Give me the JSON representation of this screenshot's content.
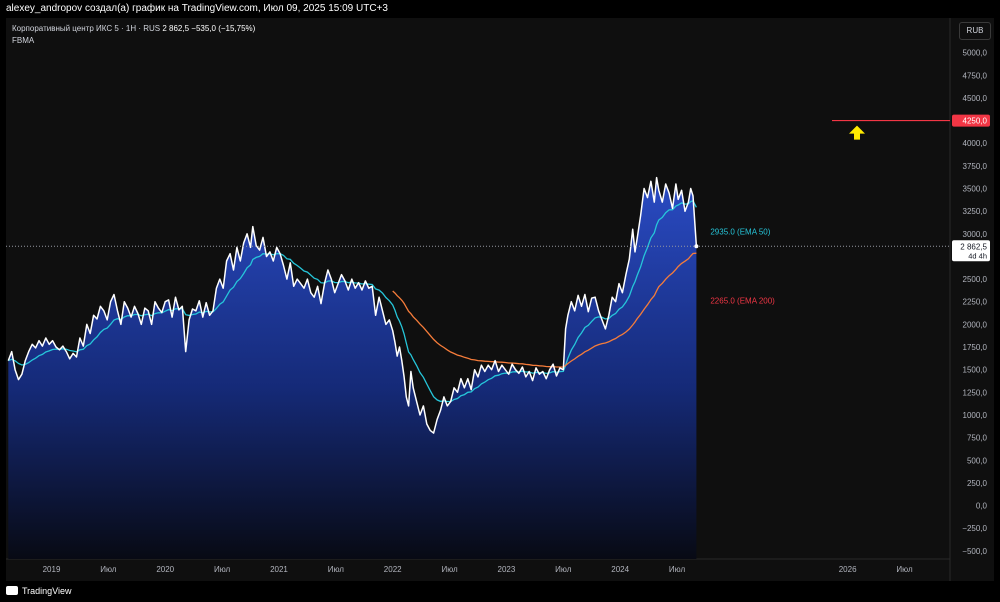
{
  "header": {
    "attribution": "alexey_andropov создал(а) график на TradingView.com, Июл 09, 2025 15:09 UTC+3"
  },
  "legend": {
    "symbol": "Корпоративный центр ИКС 5 · 1Н · RUS",
    "last": "2 862,5",
    "change": "−535,0 (−15,75%)",
    "indicator": "FBMA"
  },
  "currency_button": "RUB",
  "footer": {
    "brand": "TradingView"
  },
  "colors": {
    "background": "#0f0f0f",
    "price_line": "#ffffff",
    "area_top": "#2a4bc4",
    "ema50": "#26c6da",
    "ema200": "#f57c3a",
    "alert_line": "#f23645",
    "arrow": "#ffeb00"
  },
  "chart_data": {
    "type": "area",
    "y_axis_ticks": [
      "5000,0",
      "4750,0",
      "4500,0",
      "4250,0",
      "4000,0",
      "3750,0",
      "3500,0",
      "3250,0",
      "3000,0",
      "2750,0",
      "2500,0",
      "2250,0",
      "2000,0",
      "1750,0",
      "1500,0",
      "1250,0",
      "1000,0",
      "750,0",
      "500,0",
      "250,0",
      "0,0",
      "−250,0",
      "−500,0"
    ],
    "y_tick_values": [
      5000,
      4750,
      4500,
      4250,
      4000,
      3750,
      3500,
      3250,
      3000,
      2750,
      2500,
      2250,
      2000,
      1750,
      1500,
      1250,
      1000,
      750,
      500,
      250,
      0,
      -250,
      -500
    ],
    "ylim": [
      -590,
      5250
    ],
    "x_axis_labels": [
      {
        "label": "2019",
        "t": 2019.0
      },
      {
        "label": "Июл",
        "t": 2019.5
      },
      {
        "label": "2020",
        "t": 2020.0
      },
      {
        "label": "Июл",
        "t": 2020.5
      },
      {
        "label": "2021",
        "t": 2021.0
      },
      {
        "label": "Июл",
        "t": 2021.5
      },
      {
        "label": "2022",
        "t": 2022.0
      },
      {
        "label": "Июл",
        "t": 2022.5
      },
      {
        "label": "2023",
        "t": 2023.0
      },
      {
        "label": "Июл",
        "t": 2023.5
      },
      {
        "label": "2024",
        "t": 2024.0
      },
      {
        "label": "Июл",
        "t": 2024.5
      },
      {
        "label": "2026",
        "t": 2026.0
      },
      {
        "label": "Июл",
        "t": 2026.5
      }
    ],
    "series": [
      {
        "name": "Корпоративный центр ИКС 5",
        "points": [
          [
            2018.62,
            1600
          ],
          [
            2018.65,
            1700
          ],
          [
            2018.68,
            1500
          ],
          [
            2018.71,
            1390
          ],
          [
            2018.74,
            1450
          ],
          [
            2018.77,
            1600
          ],
          [
            2018.8,
            1700
          ],
          [
            2018.83,
            1780
          ],
          [
            2018.86,
            1740
          ],
          [
            2018.89,
            1820
          ],
          [
            2018.92,
            1760
          ],
          [
            2018.95,
            1850
          ],
          [
            2018.98,
            1780
          ],
          [
            2019.01,
            1820
          ],
          [
            2019.04,
            1750
          ],
          [
            2019.07,
            1720
          ],
          [
            2019.1,
            1760
          ],
          [
            2019.13,
            1700
          ],
          [
            2019.16,
            1620
          ],
          [
            2019.19,
            1680
          ],
          [
            2019.22,
            1640
          ],
          [
            2019.25,
            1850
          ],
          [
            2019.28,
            1760
          ],
          [
            2019.31,
            2000
          ],
          [
            2019.34,
            1900
          ],
          [
            2019.37,
            2100
          ],
          [
            2019.4,
            2060
          ],
          [
            2019.43,
            2200
          ],
          [
            2019.46,
            2150
          ],
          [
            2019.49,
            2050
          ],
          [
            2019.52,
            2250
          ],
          [
            2019.55,
            2330
          ],
          [
            2019.58,
            2150
          ],
          [
            2019.61,
            2000
          ],
          [
            2019.64,
            2250
          ],
          [
            2019.67,
            2180
          ],
          [
            2019.7,
            2080
          ],
          [
            2019.73,
            2200
          ],
          [
            2019.76,
            2120
          ],
          [
            2019.79,
            2000
          ],
          [
            2019.82,
            2180
          ],
          [
            2019.85,
            2150
          ],
          [
            2019.88,
            2000
          ],
          [
            2019.91,
            2250
          ],
          [
            2019.94,
            2180
          ],
          [
            2019.97,
            2130
          ],
          [
            2020.0,
            2250
          ],
          [
            2020.03,
            2270
          ],
          [
            2020.06,
            2080
          ],
          [
            2020.09,
            2300
          ],
          [
            2020.12,
            2160
          ],
          [
            2020.15,
            2200
          ],
          [
            2020.18,
            1700
          ],
          [
            2020.21,
            2050
          ],
          [
            2020.24,
            2170
          ],
          [
            2020.27,
            2150
          ],
          [
            2020.3,
            2260
          ],
          [
            2020.33,
            2080
          ],
          [
            2020.36,
            2240
          ],
          [
            2020.39,
            2100
          ],
          [
            2020.42,
            2150
          ],
          [
            2020.45,
            2400
          ],
          [
            2020.48,
            2500
          ],
          [
            2020.51,
            2400
          ],
          [
            2020.54,
            2700
          ],
          [
            2020.57,
            2780
          ],
          [
            2020.6,
            2600
          ],
          [
            2020.63,
            2850
          ],
          [
            2020.66,
            2700
          ],
          [
            2020.69,
            2900
          ],
          [
            2020.72,
            3000
          ],
          [
            2020.75,
            2850
          ],
          [
            2020.77,
            3080
          ],
          [
            2020.8,
            2870
          ],
          [
            2020.83,
            2820
          ],
          [
            2020.86,
            2960
          ],
          [
            2020.89,
            2750
          ],
          [
            2020.92,
            2800
          ],
          [
            2020.95,
            2700
          ],
          [
            2020.98,
            2850
          ],
          [
            2021.01,
            2780
          ],
          [
            2021.04,
            2650
          ],
          [
            2021.07,
            2500
          ],
          [
            2021.1,
            2680
          ],
          [
            2021.13,
            2420
          ],
          [
            2021.16,
            2500
          ],
          [
            2021.19,
            2450
          ],
          [
            2021.22,
            2400
          ],
          [
            2021.25,
            2500
          ],
          [
            2021.28,
            2350
          ],
          [
            2021.31,
            2300
          ],
          [
            2021.34,
            2420
          ],
          [
            2021.37,
            2230
          ],
          [
            2021.4,
            2450
          ],
          [
            2021.43,
            2600
          ],
          [
            2021.46,
            2500
          ],
          [
            2021.49,
            2350
          ],
          [
            2021.52,
            2450
          ],
          [
            2021.55,
            2550
          ],
          [
            2021.58,
            2480
          ],
          [
            2021.61,
            2380
          ],
          [
            2021.64,
            2500
          ],
          [
            2021.67,
            2400
          ],
          [
            2021.7,
            2460
          ],
          [
            2021.73,
            2380
          ],
          [
            2021.76,
            2480
          ],
          [
            2021.79,
            2400
          ],
          [
            2021.82,
            2420
          ],
          [
            2021.85,
            2100
          ],
          [
            2021.88,
            2300
          ],
          [
            2021.91,
            2150
          ],
          [
            2021.94,
            2000
          ],
          [
            2021.97,
            2050
          ],
          [
            2022.0,
            1930
          ],
          [
            2022.02,
            1800
          ],
          [
            2022.04,
            1650
          ],
          [
            2022.06,
            1750
          ],
          [
            2022.08,
            1600
          ],
          [
            2022.1,
            1420
          ],
          [
            2022.12,
            1200
          ],
          [
            2022.14,
            1100
          ],
          [
            2022.16,
            1480
          ],
          [
            2022.18,
            1300
          ],
          [
            2022.21,
            1150
          ],
          [
            2022.24,
            1000
          ],
          [
            2022.27,
            1100
          ],
          [
            2022.3,
            900
          ],
          [
            2022.33,
            830
          ],
          [
            2022.36,
            800
          ],
          [
            2022.39,
            950
          ],
          [
            2022.42,
            1050
          ],
          [
            2022.45,
            1200
          ],
          [
            2022.48,
            1100
          ],
          [
            2022.51,
            1150
          ],
          [
            2022.54,
            1300
          ],
          [
            2022.57,
            1250
          ],
          [
            2022.6,
            1400
          ],
          [
            2022.63,
            1300
          ],
          [
            2022.66,
            1400
          ],
          [
            2022.69,
            1280
          ],
          [
            2022.72,
            1500
          ],
          [
            2022.75,
            1420
          ],
          [
            2022.78,
            1550
          ],
          [
            2022.81,
            1480
          ],
          [
            2022.84,
            1550
          ],
          [
            2022.87,
            1500
          ],
          [
            2022.9,
            1600
          ],
          [
            2022.93,
            1480
          ],
          [
            2022.96,
            1550
          ],
          [
            2022.99,
            1500
          ],
          [
            2023.02,
            1450
          ],
          [
            2023.05,
            1560
          ],
          [
            2023.08,
            1500
          ],
          [
            2023.11,
            1460
          ],
          [
            2023.14,
            1530
          ],
          [
            2023.17,
            1420
          ],
          [
            2023.2,
            1480
          ],
          [
            2023.23,
            1380
          ],
          [
            2023.26,
            1520
          ],
          [
            2023.29,
            1450
          ],
          [
            2023.32,
            1480
          ],
          [
            2023.35,
            1400
          ],
          [
            2023.38,
            1500
          ],
          [
            2023.41,
            1560
          ],
          [
            2023.44,
            1430
          ],
          [
            2023.47,
            1520
          ],
          [
            2023.5,
            1500
          ],
          [
            2023.52,
            1950
          ],
          [
            2023.54,
            2100
          ],
          [
            2023.57,
            2250
          ],
          [
            2023.6,
            2150
          ],
          [
            2023.63,
            2320
          ],
          [
            2023.66,
            2200
          ],
          [
            2023.69,
            2330
          ],
          [
            2023.72,
            2140
          ],
          [
            2023.75,
            2290
          ],
          [
            2023.78,
            2300
          ],
          [
            2023.81,
            2150
          ],
          [
            2023.84,
            2050
          ],
          [
            2023.87,
            1950
          ],
          [
            2023.9,
            2100
          ],
          [
            2023.93,
            2300
          ],
          [
            2023.96,
            2250
          ],
          [
            2023.99,
            2450
          ],
          [
            2024.02,
            2350
          ],
          [
            2024.05,
            2550
          ],
          [
            2024.08,
            2720
          ],
          [
            2024.11,
            3050
          ],
          [
            2024.13,
            2800
          ],
          [
            2024.15,
            2950
          ],
          [
            2024.18,
            3200
          ],
          [
            2024.21,
            3500
          ],
          [
            2024.24,
            3400
          ],
          [
            2024.27,
            3580
          ],
          [
            2024.3,
            3350
          ],
          [
            2024.32,
            3620
          ],
          [
            2024.34,
            3480
          ],
          [
            2024.37,
            3350
          ],
          [
            2024.4,
            3550
          ],
          [
            2024.43,
            3450
          ],
          [
            2024.46,
            3280
          ],
          [
            2024.49,
            3550
          ],
          [
            2024.51,
            3380
          ],
          [
            2024.54,
            3480
          ],
          [
            2024.57,
            3250
          ],
          [
            2024.6,
            3350
          ],
          [
            2024.62,
            3500
          ],
          [
            2024.64,
            3420
          ],
          [
            2024.67,
            2862.5
          ]
        ]
      },
      {
        "name": "EMA 50",
        "label": "2935.0 (EMA 50)",
        "last": 2935.0
      },
      {
        "name": "EMA 200",
        "label": "2265.0 (EMA 200)",
        "last": 2265.0
      }
    ],
    "current_price_tag": {
      "value": "2 862,5",
      "countdown": "4d 4h"
    },
    "alert_level": {
      "value": 4250,
      "label": "4250,0"
    }
  }
}
